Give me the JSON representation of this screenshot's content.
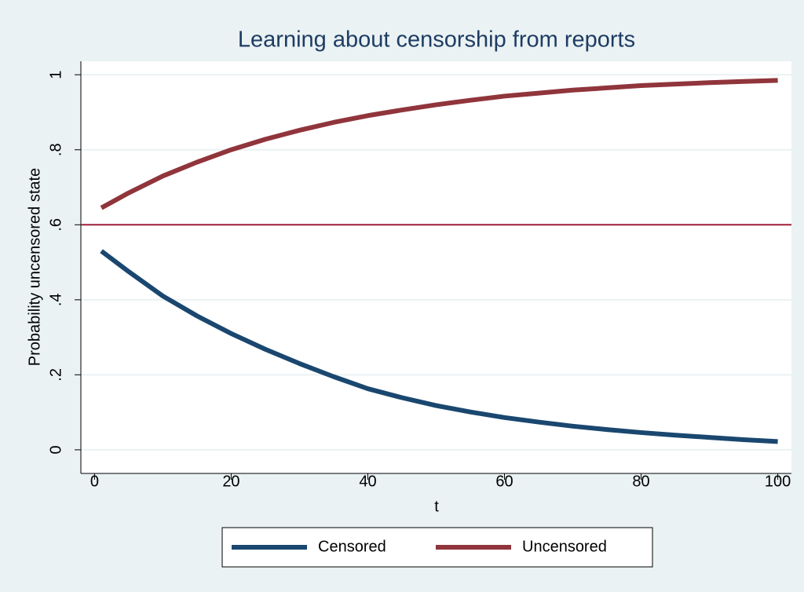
{
  "chart_data": {
    "type": "line",
    "title": "Learning about censorship from reports",
    "x_label": "t",
    "y_label": "Probability uncensored state",
    "x": [
      1,
      5,
      10,
      15,
      20,
      25,
      30,
      35,
      40,
      45,
      50,
      55,
      60,
      65,
      70,
      75,
      80,
      85,
      90,
      95,
      100
    ],
    "series": [
      {
        "name": "Censored",
        "color": "#1a476f",
        "values": [
          0.53,
          0.475,
          0.41,
          0.357,
          0.31,
          0.268,
          0.23,
          0.195,
          0.163,
          0.139,
          0.118,
          0.101,
          0.086,
          0.074,
          0.063,
          0.054,
          0.046,
          0.039,
          0.033,
          0.027,
          0.022
        ]
      },
      {
        "name": "Uncensored",
        "color": "#90353b",
        "values": [
          0.645,
          0.685,
          0.73,
          0.767,
          0.8,
          0.828,
          0.852,
          0.873,
          0.891,
          0.906,
          0.92,
          0.932,
          0.943,
          0.951,
          0.959,
          0.965,
          0.971,
          0.975,
          0.979,
          0.982,
          0.985
        ]
      }
    ],
    "yline": 0.6,
    "yline_color": "#a0213a",
    "xlim": [
      -2,
      102
    ],
    "ylim": [
      -0.063,
      1.036
    ],
    "xticks": [
      0,
      20,
      40,
      60,
      80,
      100
    ],
    "yticks": [
      0,
      {
        "value": 0.2,
        "label": ".2"
      },
      {
        "value": 0.4,
        "label": ".4"
      },
      {
        "value": 0.6,
        "label": ".6"
      },
      {
        "value": 0.8,
        "label": ".8"
      },
      1
    ],
    "grid": true,
    "legend_position": "bottom"
  }
}
